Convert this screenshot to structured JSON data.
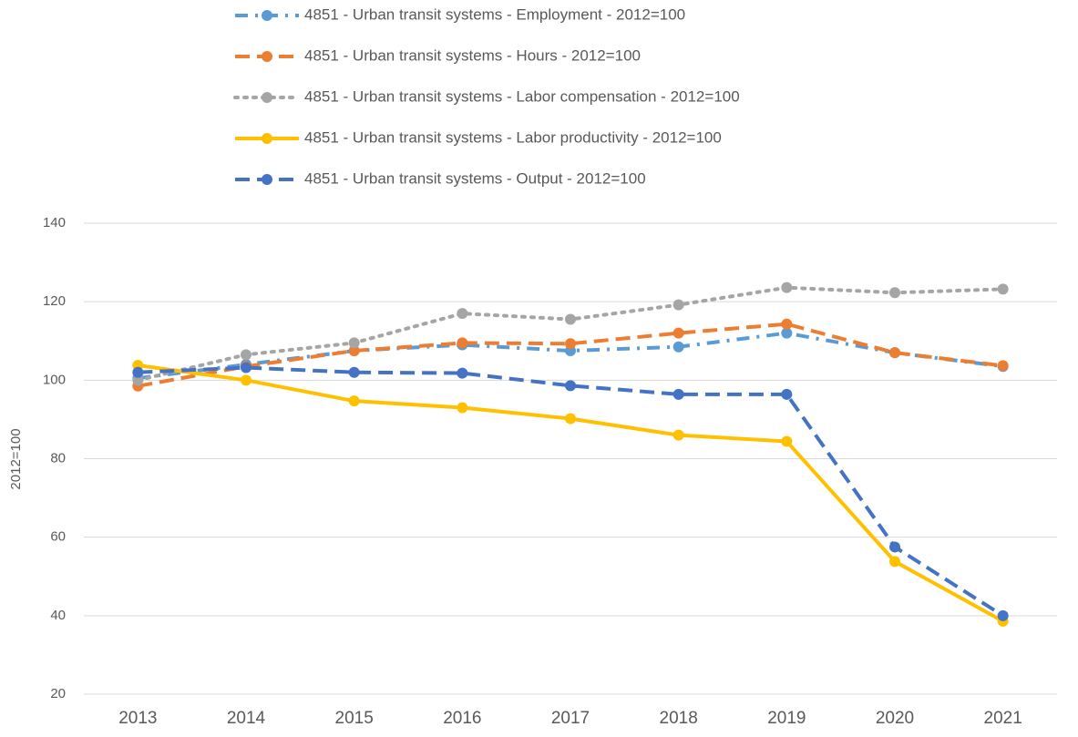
{
  "chart_data": {
    "type": "line",
    "y_label": "2012=100",
    "categories": [
      "2013",
      "2014",
      "2015",
      "2016",
      "2017",
      "2018",
      "2019",
      "2020",
      "2021"
    ],
    "series": [
      {
        "name": "4851 - Urban transit systems - Employment - 2012=100",
        "color": "#5b9bd5",
        "line_style": "dash-dot",
        "values": [
          100.5,
          104,
          107.5,
          109,
          107.5,
          108.5,
          112,
          107,
          103.5
        ]
      },
      {
        "name": "4851 - Urban transit systems - Hours - 2012=100",
        "color": "#ed7d31",
        "line_style": "dashed",
        "values": [
          98.5,
          103.5,
          107.5,
          109.5,
          109.3,
          112,
          114.3,
          107,
          103.7
        ]
      },
      {
        "name": "4851 - Urban transit systems - Labor compensation - 2012=100",
        "color": "#a5a5a5",
        "line_style": "dotted",
        "values": [
          100,
          106.5,
          109.5,
          117,
          115.5,
          119.2,
          123.6,
          122.3,
          123.2
        ]
      },
      {
        "name": "4851 - Urban transit systems - Labor productivity - 2012=100",
        "color": "#ffc000",
        "line_style": "solid",
        "values": [
          103.8,
          100,
          94.7,
          93,
          90.2,
          86,
          84.4,
          53.8,
          38.6
        ]
      },
      {
        "name": "4851 - Urban transit systems - Output - 2012=100",
        "color": "#4472c4",
        "line_style": "dashed",
        "values": [
          102,
          103.2,
          102,
          101.8,
          98.6,
          96.4,
          96.4,
          57.5,
          40
        ]
      }
    ],
    "ylim": [
      20,
      140
    ],
    "yticks": [
      20,
      40,
      60,
      80,
      100,
      120,
      140
    ],
    "grid": true,
    "legend": "top"
  }
}
